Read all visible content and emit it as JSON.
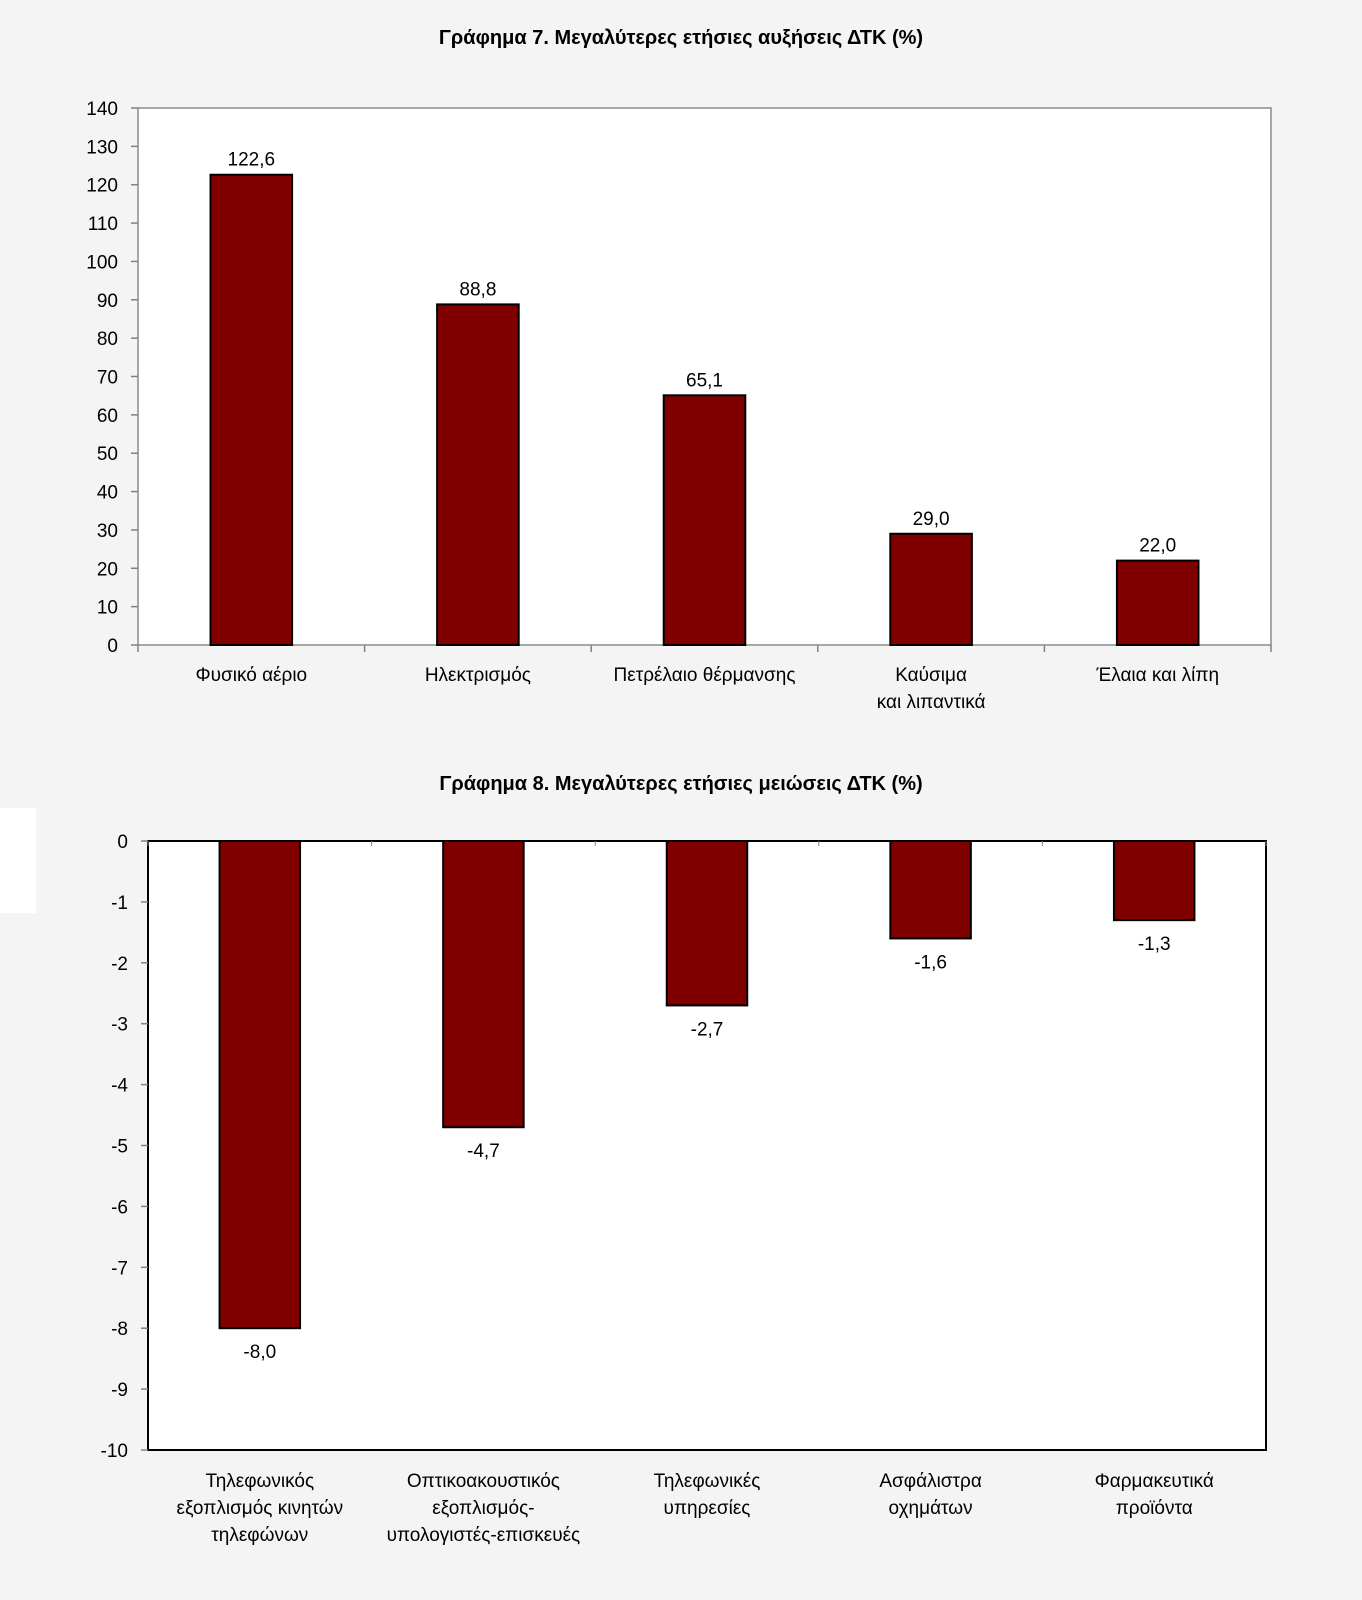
{
  "chart_data": [
    {
      "type": "bar",
      "title": "Γράφημα 7. Μεγαλύτερες ετήσιες αυξήσεις ΔΤΚ (%)",
      "categories": [
        [
          "Φυσικό αέριο"
        ],
        [
          "Ηλεκτρισμός"
        ],
        [
          "Πετρέλαιο θέρμανσης"
        ],
        [
          "Καύσιμα",
          "και λιπαντικά"
        ],
        [
          "Έλαια και λίπη"
        ]
      ],
      "values": [
        122.6,
        88.8,
        65.1,
        29.0,
        22.0
      ],
      "data_labels": [
        "122,6",
        "88,8",
        "65,1",
        "29,0",
        "22,0"
      ],
      "ylim": [
        0,
        140
      ],
      "ytick_step": 10,
      "bar_color": "#800000",
      "grid": false,
      "xlabel": "",
      "ylabel": ""
    },
    {
      "type": "bar",
      "title": "Γράφημα 8. Μεγαλύτερες ετήσιες μειώσεις ΔΤΚ (%)",
      "categories": [
        [
          "Τηλεφωνικός",
          "εξοπλισμός κινητών",
          "τηλεφώνων"
        ],
        [
          "Οπτικοακουστικός",
          "εξοπλισμός-",
          "υπολογιστές-επισκευές"
        ],
        [
          "Τηλεφωνικές",
          "υπηρεσίες"
        ],
        [
          "Ασφάλιστρα",
          "οχημάτων"
        ],
        [
          "Φαρμακευτικά",
          "προϊόντα"
        ]
      ],
      "values": [
        -8.0,
        -4.7,
        -2.7,
        -1.6,
        -1.3
      ],
      "data_labels": [
        "-8,0",
        "-4,7",
        "-2,7",
        "-1,6",
        "-1,3"
      ],
      "ylim": [
        -10,
        0
      ],
      "ytick_step": 1,
      "bar_color": "#800000",
      "grid": false,
      "xlabel": "",
      "ylabel": ""
    }
  ]
}
